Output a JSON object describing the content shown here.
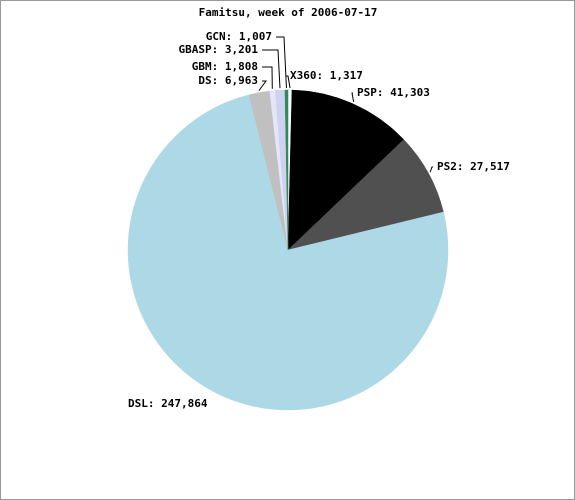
{
  "chart_data": {
    "type": "pie",
    "title": "Famitsu, week of 2006-07-17",
    "values": [
      1317,
      41303,
      27517,
      247864,
      6963,
      1808,
      3201,
      1007
    ],
    "value_labels": [
      "X360: 1,317",
      "PSP: 41,303",
      "PS2: 27,517",
      "DSL: 247,864",
      "DS: 6,963",
      "GBM: 1,808",
      "GBASP: 3,201",
      "GCN: 1,007"
    ],
    "colors": [
      "#ffffff",
      "#000000",
      "#505050",
      "#add8e6",
      "#c0c0c0",
      "#e6e6fa",
      "#d0d0f0",
      "#2e8b57"
    ]
  }
}
